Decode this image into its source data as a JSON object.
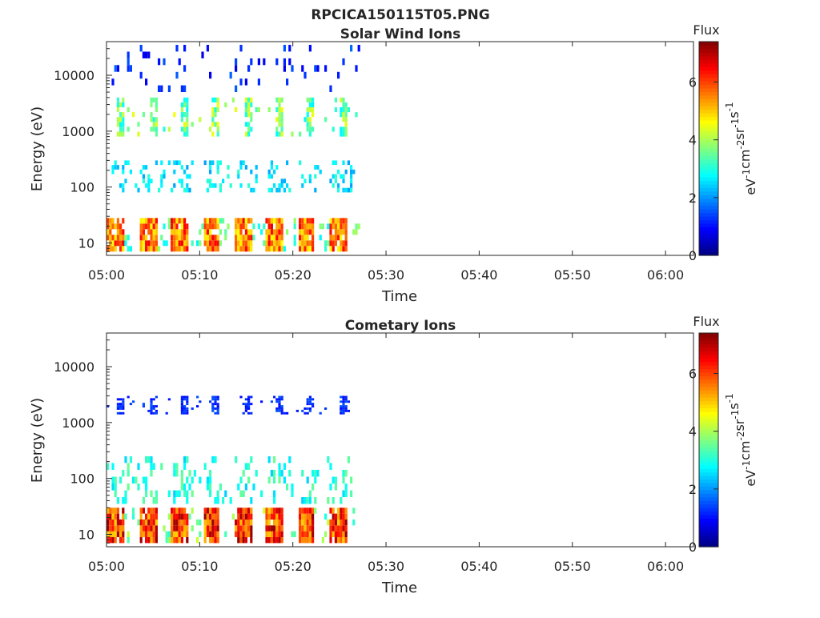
{
  "figure": {
    "title": "RPCICA150115T05.PNG"
  },
  "chart_data": [
    {
      "type": "heatmap",
      "title": "Solar Wind Ions",
      "xlabel": "Time",
      "ylabel": "Energy (eV)",
      "x_range": [
        "05:00",
        "06:03"
      ],
      "y_range": [
        6,
        40000
      ],
      "y_scale": "log",
      "x_ticks": [
        "05:00",
        "05:10",
        "05:20",
        "05:30",
        "05:40",
        "05:50",
        "06:00"
      ],
      "y_ticks": [
        10,
        100,
        1000,
        10000
      ],
      "y_tick_labels": [
        "10",
        "100",
        "1000",
        "10000"
      ],
      "colorbar": {
        "title": "Flux",
        "label": "eV-1cm-2sr-1s-1",
        "range": [
          0,
          7.4
        ],
        "ticks": [
          0,
          2,
          4,
          6
        ],
        "tick_labels": [
          "0",
          "2",
          "4",
          "6"
        ],
        "colormap": "jet"
      },
      "data_end": "05:27",
      "sweep_period_min": 3.4,
      "bands": [
        {
          "name": "low",
          "energy": [
            7,
            28
          ],
          "value": 6.0
        },
        {
          "name": "mid",
          "energy": [
            80,
            300
          ],
          "value": 2.6
        },
        {
          "name": "beam",
          "energy": [
            800,
            4000
          ],
          "value": 3.8
        },
        {
          "name": "high",
          "energy": [
            5000,
            35000
          ],
          "value": 1.2
        }
      ]
    },
    {
      "type": "heatmap",
      "title": "Cometary Ions",
      "xlabel": "Time",
      "ylabel": "Energy (eV)",
      "x_range": [
        "05:00",
        "06:03"
      ],
      "y_range": [
        6,
        40000
      ],
      "y_scale": "log",
      "x_ticks": [
        "05:00",
        "05:10",
        "05:20",
        "05:30",
        "05:40",
        "05:50",
        "06:00"
      ],
      "y_ticks": [
        10,
        100,
        1000,
        10000
      ],
      "y_tick_labels": [
        "10",
        "100",
        "1000",
        "10000"
      ],
      "colorbar": {
        "title": "Flux",
        "label": "eV-1cm-2sr-1s-1",
        "range": [
          0,
          7.4
        ],
        "ticks": [
          0,
          2,
          4,
          6
        ],
        "tick_labels": [
          "0",
          "2",
          "4",
          "6"
        ],
        "colormap": "jet"
      },
      "data_end": "05:27",
      "sweep_period_min": 3.4,
      "bands": [
        {
          "name": "low",
          "energy": [
            7,
            30
          ],
          "value": 6.6
        },
        {
          "name": "mid",
          "energy": [
            35,
            250
          ],
          "value": 3.0
        },
        {
          "name": "beam",
          "energy": [
            1400,
            3000
          ],
          "value": 1.3
        }
      ]
    }
  ]
}
